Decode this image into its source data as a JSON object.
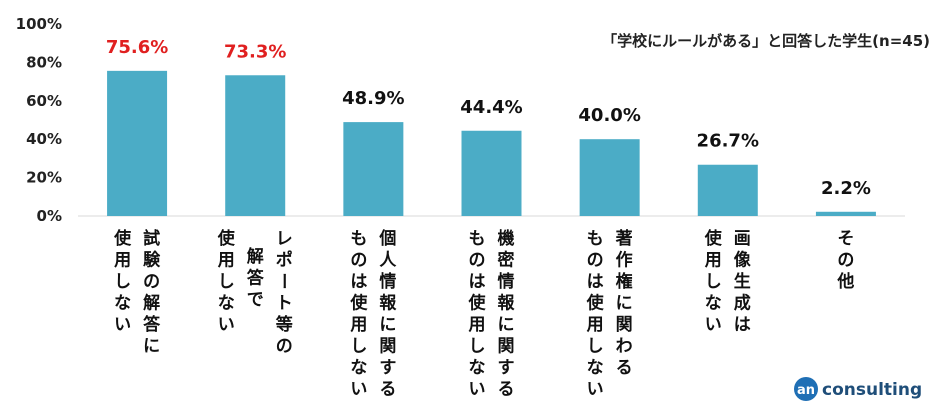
{
  "chart_data": {
    "type": "bar",
    "note": "「学校にルールがある」と回答した学生(n=45)",
    "ylim": [
      0,
      100
    ],
    "yticks": [
      "0%",
      "20%",
      "40%",
      "60%",
      "80%",
      "100%"
    ],
    "categories": [
      [
        "試験の解答に",
        "使用しない"
      ],
      [
        "レポート等の",
        "解答で",
        "使用しない"
      ],
      [
        "個人情報に関する",
        "ものは使用しない"
      ],
      [
        "機密情報に関する",
        "ものは使用しない"
      ],
      [
        "著作権に関わる",
        "ものは使用しない"
      ],
      [
        "画像生成は",
        "使用しない"
      ],
      [
        "その他"
      ]
    ],
    "values": [
      75.6,
      73.3,
      48.9,
      44.4,
      40.0,
      26.7,
      2.2
    ],
    "value_labels": [
      "75.6%",
      "73.3%",
      "48.9%",
      "44.4%",
      "40.0%",
      "26.7%",
      "2.2%"
    ],
    "highlight": [
      true,
      true,
      false,
      false,
      false,
      false,
      false
    ],
    "bar_color": "#4bacc6",
    "highlight_label_color": "#e02020",
    "label_color": "#111111"
  },
  "logo": {
    "badge": "an",
    "text": "consulting",
    "color": "#1f6fb5"
  }
}
